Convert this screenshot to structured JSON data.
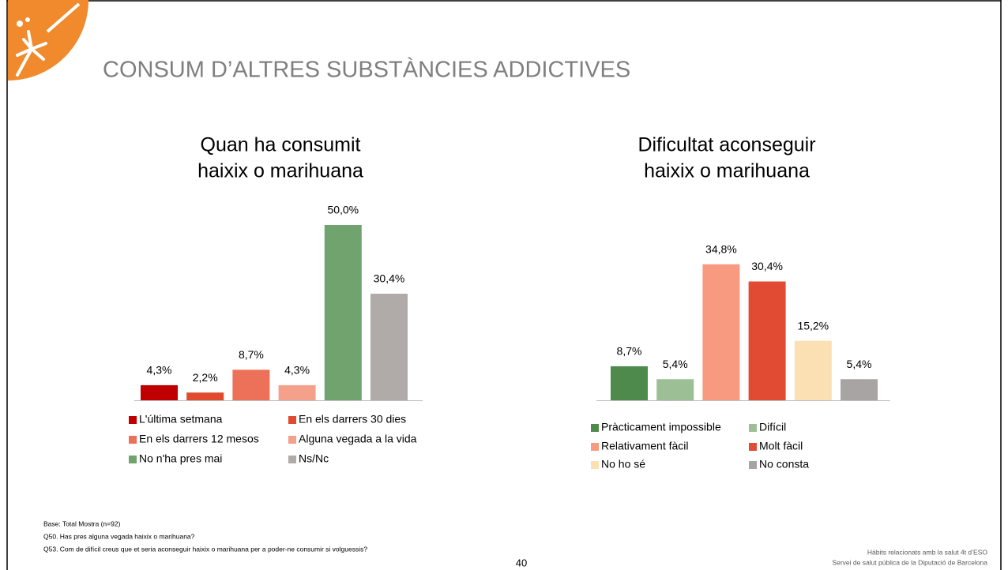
{
  "header": {
    "title": "CONSUM D’ALTRES SUBSTÀNCIES ADDICTIVES"
  },
  "chart_data": [
    {
      "type": "bar",
      "title": [
        "Quan ha consumit",
        "haixix o marihuana"
      ],
      "categories": [
        "L'última setmana",
        "En els darrers 30 dies",
        "En els darrers 12 mesos",
        "Alguna vegada a la vida",
        "No n'ha pres mai",
        "Ns/Nc"
      ],
      "values": [
        4.3,
        2.2,
        8.7,
        4.3,
        50.0,
        30.4
      ],
      "value_labels": [
        "4,3%",
        "2,2%",
        "8,7%",
        "4,3%",
        "50,0%",
        "30,4%"
      ],
      "colors": [
        "#c00000",
        "#e04a2f",
        "#ed7158",
        "#f4a08a",
        "#70a36e",
        "#b0aaa9"
      ]
    },
    {
      "type": "bar",
      "title": [
        "Dificultat aconseguir",
        "haixix o marihuana"
      ],
      "categories": [
        "Pràcticament impossible",
        "Difícil",
        "Relativament fàcil",
        "Molt fàcil",
        "No ho sé",
        "No consta"
      ],
      "values": [
        8.7,
        5.4,
        34.8,
        30.4,
        15.2,
        5.4
      ],
      "value_labels": [
        "8,7%",
        "5,4%",
        "34,8%",
        "30,4%",
        "15,2%",
        "5,4%"
      ],
      "colors": [
        "#4e8a4c",
        "#9dbf95",
        "#f79a80",
        "#e24b33",
        "#fbe0b4",
        "#a8a4a3"
      ]
    }
  ],
  "footnotes": [
    "Base: Total Mostra (n=92)",
    "Q50. Has pres alguna vegada haixix o marihuana?",
    "Q53. Com de difícil creus que et seria aconseguir haixix o marihuana per a poder-ne consumir si volguessis?"
  ],
  "page_number": "40",
  "footer": [
    "Hàbits  relacionats  amb la salut  4t d’ESO",
    "Servei de salut pública de la Diputació de Barcelona"
  ]
}
